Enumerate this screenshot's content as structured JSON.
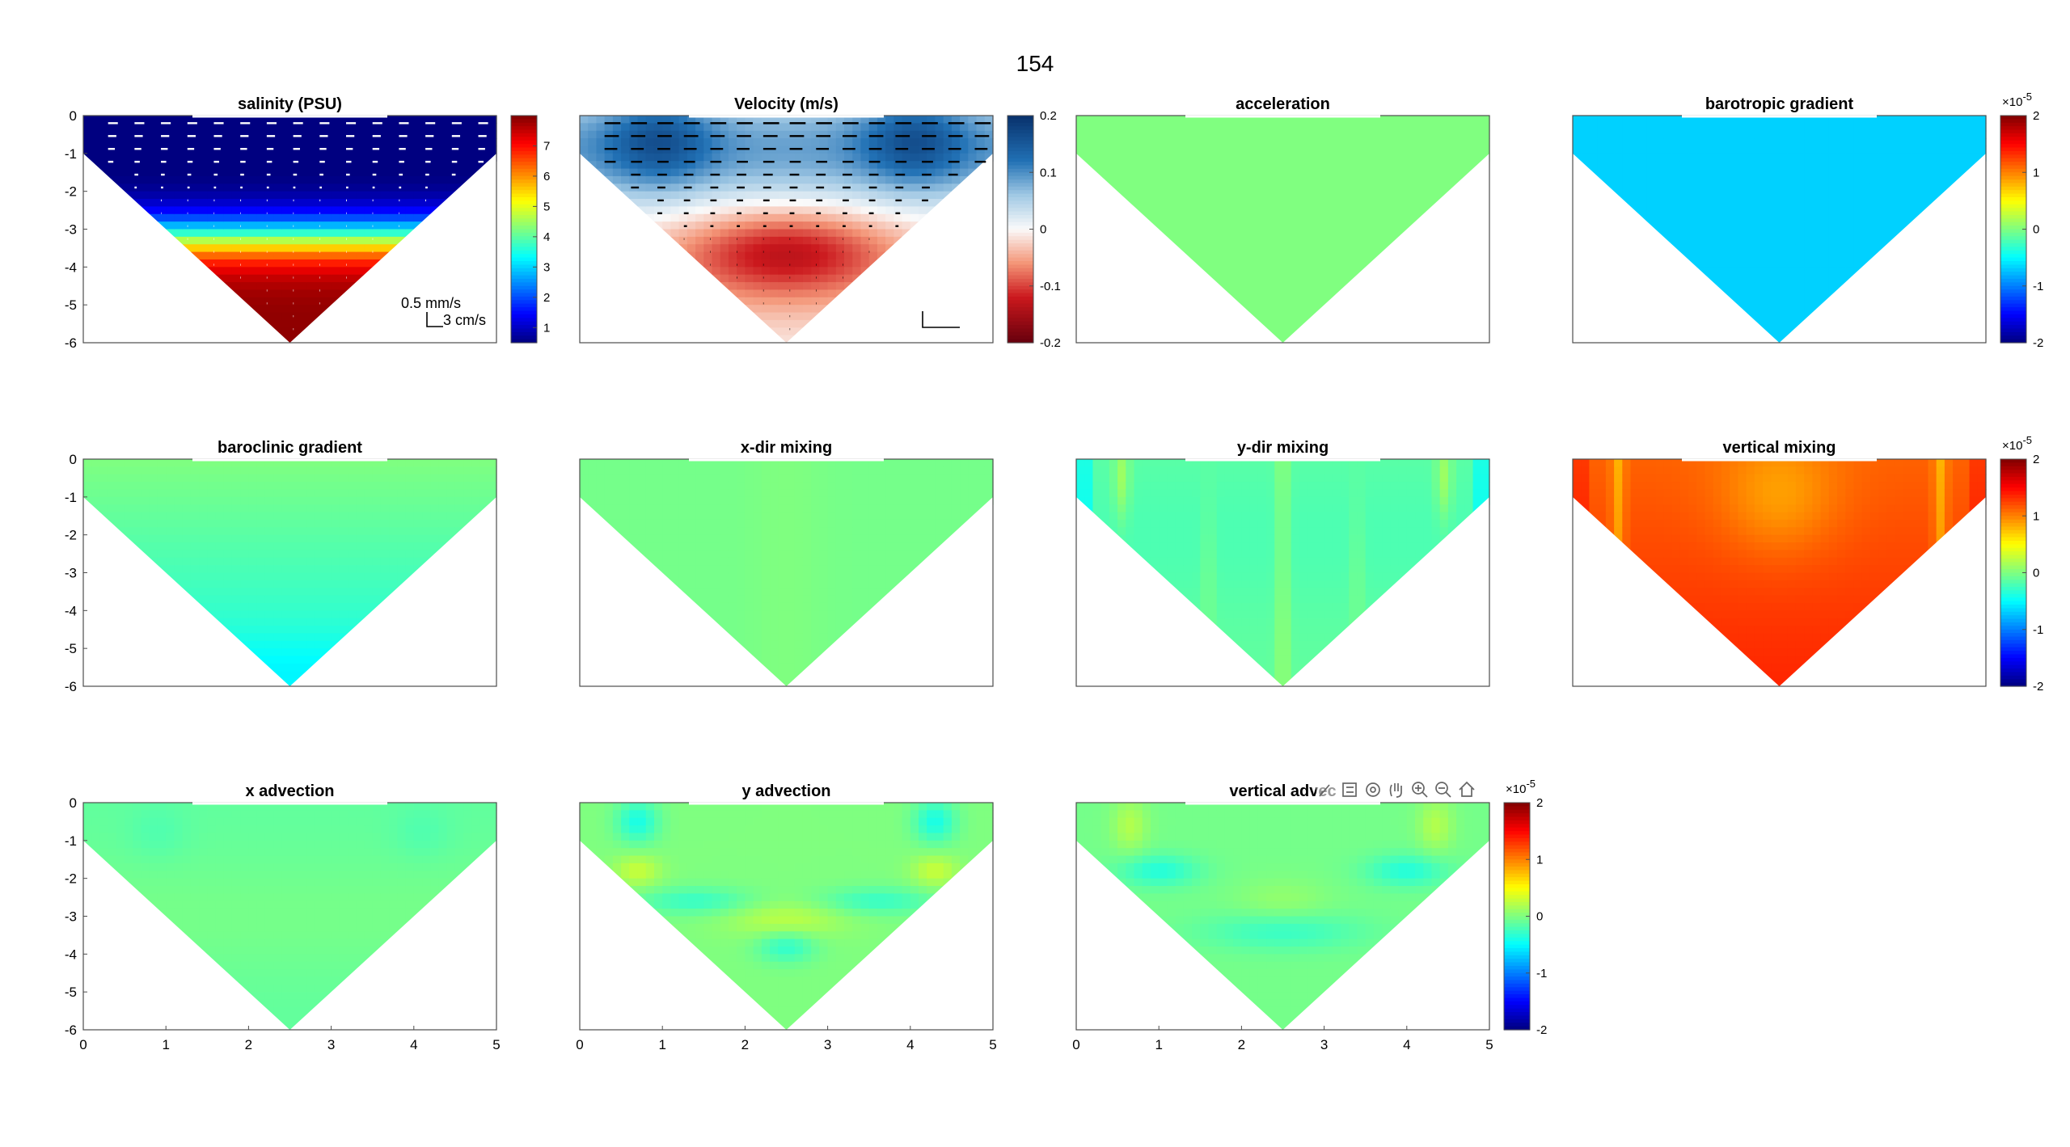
{
  "figure": {
    "title": "154"
  },
  "toolbar": {
    "icons": [
      "brush-icon",
      "legend-icon",
      "rotate-icon",
      "pan-icon",
      "zoom-in-icon",
      "zoom-out-icon",
      "home-icon"
    ]
  },
  "colors": {
    "axes": "#4d4d4d",
    "background": "#ffffff",
    "jet_green": "#80ff80"
  },
  "chart_data": [
    {
      "type": "heatmap",
      "title": "salinity (PSU)",
      "xlim": [
        0,
        5
      ],
      "ylim": [
        -6,
        0
      ],
      "yticks": [
        "0",
        "-1",
        "-2",
        "-3",
        "-4",
        "-5",
        "-6"
      ],
      "xticks": [],
      "field": "salinity",
      "colormap": "jet",
      "colorbar": {
        "ticks": [
          "7",
          "6",
          "5",
          "4",
          "3",
          "2",
          "1"
        ],
        "range": [
          0.5,
          8
        ],
        "exponent": ""
      },
      "quiver": "white",
      "scale_labels": [
        "0.5 mm/s",
        "3 cm/s"
      ]
    },
    {
      "type": "heatmap",
      "title": "Velocity (m/s)",
      "xlim": [
        0,
        5
      ],
      "ylim": [
        -6,
        0
      ],
      "yticks": [],
      "xticks": [],
      "field": "velocity",
      "colormap": "diverging",
      "colorbar": {
        "ticks": [
          "0.2",
          "0.1",
          "0",
          "-0.1",
          "-0.2"
        ],
        "range": [
          -0.2,
          0.2
        ],
        "exponent": ""
      },
      "quiver": "black",
      "scale_labels": []
    },
    {
      "type": "heatmap",
      "title": "acceleration",
      "xlim": [
        0,
        5
      ],
      "ylim": [
        -6,
        0
      ],
      "yticks": [],
      "xticks": [],
      "field": "zero",
      "colormap": "jet",
      "colorbar": null
    },
    {
      "type": "heatmap",
      "title": "barotropic gradient",
      "xlim": [
        0,
        5
      ],
      "ylim": [
        -6,
        0
      ],
      "yticks": [],
      "xticks": [],
      "field": "barotropic",
      "colormap": "jet",
      "colorbar": {
        "ticks": [
          "2",
          "1",
          "0",
          "-1",
          "-2"
        ],
        "range": [
          -2,
          2
        ],
        "exponent": "-5",
        "exp_base": "×10"
      }
    },
    {
      "type": "heatmap",
      "title": "baroclinic gradient",
      "xlim": [
        0,
        5
      ],
      "ylim": [
        -6,
        0
      ],
      "yticks": [
        "0",
        "-1",
        "-2",
        "-3",
        "-4",
        "-5",
        "-6"
      ],
      "xticks": [],
      "field": "baroclinic",
      "colormap": "jet",
      "colorbar": null
    },
    {
      "type": "heatmap",
      "title": "x-dir mixing",
      "xlim": [
        0,
        5
      ],
      "ylim": [
        -6,
        0
      ],
      "yticks": [],
      "xticks": [],
      "field": "xmix",
      "colormap": "jet",
      "colorbar": null
    },
    {
      "type": "heatmap",
      "title": "y-dir mixing",
      "xlim": [
        0,
        5
      ],
      "ylim": [
        -6,
        0
      ],
      "yticks": [],
      "xticks": [],
      "field": "ymix",
      "colormap": "jet",
      "colorbar": null
    },
    {
      "type": "heatmap",
      "title": "vertical mixing",
      "xlim": [
        0,
        5
      ],
      "ylim": [
        -6,
        0
      ],
      "yticks": [],
      "xticks": [],
      "field": "vmix",
      "colormap": "jet",
      "colorbar": {
        "ticks": [
          "2",
          "1",
          "0",
          "-1",
          "-2"
        ],
        "range": [
          -2,
          2
        ],
        "exponent": "-5",
        "exp_base": "×10"
      }
    },
    {
      "type": "heatmap",
      "title": "x advection",
      "xlim": [
        0,
        5
      ],
      "ylim": [
        -6,
        0
      ],
      "yticks": [
        "0",
        "-1",
        "-2",
        "-3",
        "-4",
        "-5",
        "-6"
      ],
      "xticks": [
        "0",
        "1",
        "2",
        "3",
        "4",
        "5"
      ],
      "field": "xadv",
      "colormap": "jet",
      "colorbar": null
    },
    {
      "type": "heatmap",
      "title": "y advection",
      "xlim": [
        0,
        5
      ],
      "ylim": [
        -6,
        0
      ],
      "yticks": [],
      "xticks": [
        "0",
        "1",
        "2",
        "3",
        "4",
        "5"
      ],
      "field": "yadv",
      "colormap": "jet",
      "colorbar": null
    },
    {
      "type": "heatmap",
      "title": "vertical advec",
      "xlim": [
        0,
        5
      ],
      "ylim": [
        -6,
        0
      ],
      "yticks": [],
      "xticks": [
        "0",
        "1",
        "2",
        "3",
        "4",
        "5"
      ],
      "field": "vadv",
      "colormap": "jet",
      "colorbar": {
        "ticks": [
          "2",
          "1",
          "0",
          "-1",
          "-2"
        ],
        "range": [
          -2,
          2
        ],
        "exponent": "-5",
        "exp_base": "×10"
      }
    }
  ]
}
